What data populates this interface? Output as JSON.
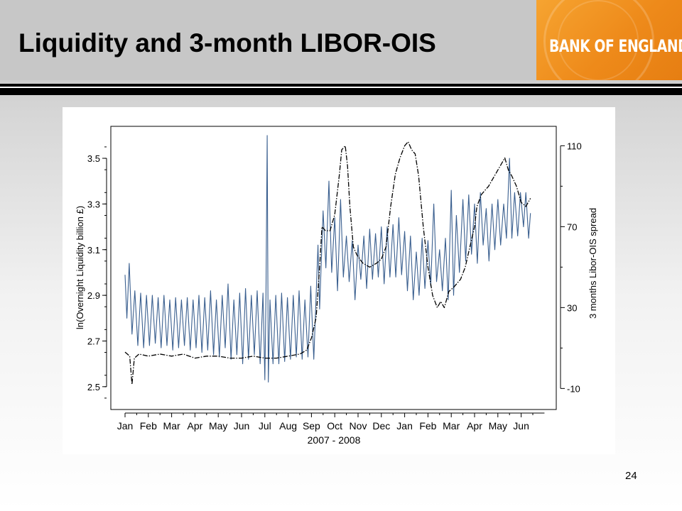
{
  "slide": {
    "title": "Liquidity and 3-month LIBOR-OIS",
    "logo_text": "BANK OF ENGLAND",
    "page_number": "24",
    "accent_color": "#ee8a1a"
  },
  "chart_data": {
    "type": "line",
    "title": "",
    "xlabel": "2007 - 2008",
    "ylabel_left": "ln(Overnight Liquidity billion £)",
    "ylabel_right": "3 months Libor-OIS spread",
    "x_tick_labels": [
      "Jan",
      "Feb",
      "Mar",
      "Apr",
      "May",
      "Jun",
      "Jul",
      "Aug",
      "Sep",
      "Oct",
      "Nov",
      "Dec",
      "Jan",
      "Feb",
      "Mar",
      "Apr",
      "May",
      "Jun"
    ],
    "y_left_ticks": [
      "2.5",
      "2.7",
      "2.9",
      "3.1",
      "3.3",
      "3.5"
    ],
    "y_left_range": [
      2.4,
      3.64
    ],
    "y_right_ticks": [
      "-10",
      "30",
      "70",
      "110"
    ],
    "y_right_range": [
      -20.4,
      119.6
    ],
    "grid": false,
    "legend": "none",
    "x_unit": "month index from Jan 2007",
    "series": [
      {
        "axis": "left",
        "style": "solid",
        "color": "#3a5f8f",
        "points": [
          [
            0.0,
            2.99
          ],
          [
            0.08,
            2.8
          ],
          [
            0.18,
            3.04
          ],
          [
            0.3,
            2.73
          ],
          [
            0.42,
            2.92
          ],
          [
            0.55,
            2.68
          ],
          [
            0.67,
            2.91
          ],
          [
            0.8,
            2.67
          ],
          [
            0.92,
            2.9
          ],
          [
            1.05,
            2.68
          ],
          [
            1.17,
            2.9
          ],
          [
            1.3,
            2.69
          ],
          [
            1.42,
            2.89
          ],
          [
            1.55,
            2.67
          ],
          [
            1.67,
            2.9
          ],
          [
            1.8,
            2.68
          ],
          [
            1.92,
            2.88
          ],
          [
            2.05,
            2.66
          ],
          [
            2.17,
            2.89
          ],
          [
            2.3,
            2.67
          ],
          [
            2.42,
            2.88
          ],
          [
            2.55,
            2.68
          ],
          [
            2.67,
            2.89
          ],
          [
            2.8,
            2.66
          ],
          [
            2.92,
            2.88
          ],
          [
            3.05,
            2.67
          ],
          [
            3.17,
            2.9
          ],
          [
            3.3,
            2.65
          ],
          [
            3.42,
            2.89
          ],
          [
            3.55,
            2.66
          ],
          [
            3.67,
            2.92
          ],
          [
            3.8,
            2.64
          ],
          [
            3.92,
            2.88
          ],
          [
            4.05,
            2.63
          ],
          [
            4.17,
            2.9
          ],
          [
            4.3,
            2.67
          ],
          [
            4.42,
            2.95
          ],
          [
            4.55,
            2.62
          ],
          [
            4.67,
            2.88
          ],
          [
            4.8,
            2.64
          ],
          [
            4.92,
            2.91
          ],
          [
            5.05,
            2.6
          ],
          [
            5.17,
            2.93
          ],
          [
            5.3,
            2.62
          ],
          [
            5.42,
            2.9
          ],
          [
            5.55,
            2.64
          ],
          [
            5.67,
            2.92
          ],
          [
            5.8,
            2.6
          ],
          [
            5.92,
            2.91
          ],
          [
            6.0,
            2.53
          ],
          [
            6.05,
            2.9
          ],
          [
            6.1,
            3.6
          ],
          [
            6.15,
            2.52
          ],
          [
            6.22,
            2.88
          ],
          [
            6.35,
            2.6
          ],
          [
            6.47,
            2.9
          ],
          [
            6.6,
            2.6
          ],
          [
            6.72,
            2.91
          ],
          [
            6.85,
            2.61
          ],
          [
            6.97,
            2.89
          ],
          [
            7.1,
            2.62
          ],
          [
            7.22,
            2.9
          ],
          [
            7.35,
            2.63
          ],
          [
            7.47,
            2.92
          ],
          [
            7.6,
            2.62
          ],
          [
            7.72,
            2.88
          ],
          [
            7.85,
            2.63
          ],
          [
            7.97,
            2.94
          ],
          [
            8.1,
            2.62
          ],
          [
            8.2,
            2.9
          ],
          [
            8.28,
            3.12
          ],
          [
            8.35,
            2.84
          ],
          [
            8.5,
            3.27
          ],
          [
            8.62,
            3.02
          ],
          [
            8.75,
            3.4
          ],
          [
            8.87,
            3.0
          ],
          [
            9.0,
            3.24
          ],
          [
            9.12,
            2.92
          ],
          [
            9.25,
            3.32
          ],
          [
            9.37,
            2.98
          ],
          [
            9.5,
            3.16
          ],
          [
            9.62,
            2.96
          ],
          [
            9.75,
            3.14
          ],
          [
            9.87,
            2.88
          ],
          [
            10.0,
            3.12
          ],
          [
            10.12,
            2.97
          ],
          [
            10.25,
            3.16
          ],
          [
            10.37,
            2.93
          ],
          [
            10.5,
            3.19
          ],
          [
            10.62,
            2.97
          ],
          [
            10.75,
            3.17
          ],
          [
            10.87,
            2.98
          ],
          [
            11.0,
            3.2
          ],
          [
            11.12,
            2.95
          ],
          [
            11.25,
            3.2
          ],
          [
            11.37,
            2.98
          ],
          [
            11.5,
            3.21
          ],
          [
            11.62,
            2.98
          ],
          [
            11.75,
            3.24
          ],
          [
            11.87,
            2.99
          ],
          [
            12.0,
            3.18
          ],
          [
            12.12,
            2.92
          ],
          [
            12.25,
            3.16
          ],
          [
            12.37,
            2.88
          ],
          [
            12.5,
            3.09
          ],
          [
            12.62,
            2.9
          ],
          [
            12.75,
            3.15
          ],
          [
            12.87,
            2.93
          ],
          [
            13.0,
            3.14
          ],
          [
            13.12,
            2.94
          ],
          [
            13.25,
            3.3
          ],
          [
            13.37,
            2.96
          ],
          [
            13.5,
            3.1
          ],
          [
            13.62,
            2.92
          ],
          [
            13.75,
            3.15
          ],
          [
            13.87,
            2.88
          ],
          [
            14.0,
            3.36
          ],
          [
            14.1,
            2.9
          ],
          [
            14.22,
            3.25
          ],
          [
            14.35,
            3.0
          ],
          [
            14.5,
            3.32
          ],
          [
            14.62,
            3.05
          ],
          [
            14.75,
            3.34
          ],
          [
            14.87,
            3.08
          ],
          [
            15.0,
            3.3
          ],
          [
            15.12,
            3.04
          ],
          [
            15.25,
            3.35
          ],
          [
            15.37,
            3.12
          ],
          [
            15.5,
            3.28
          ],
          [
            15.62,
            3.05
          ],
          [
            15.75,
            3.3
          ],
          [
            15.87,
            3.1
          ],
          [
            16.0,
            3.32
          ],
          [
            16.12,
            3.12
          ],
          [
            16.25,
            3.3
          ],
          [
            16.37,
            3.15
          ],
          [
            16.5,
            3.5
          ],
          [
            16.6,
            3.15
          ],
          [
            16.72,
            3.35
          ],
          [
            16.85,
            3.16
          ],
          [
            16.97,
            3.35
          ],
          [
            17.1,
            3.2
          ],
          [
            17.2,
            3.35
          ],
          [
            17.32,
            3.15
          ],
          [
            17.4,
            3.26
          ]
        ]
      },
      {
        "axis": "right",
        "style": "dashed",
        "color": "#000000",
        "points": [
          [
            0.0,
            8
          ],
          [
            0.2,
            6
          ],
          [
            0.3,
            -8
          ],
          [
            0.4,
            5
          ],
          [
            0.6,
            7
          ],
          [
            1.0,
            6
          ],
          [
            1.5,
            7
          ],
          [
            2.0,
            6
          ],
          [
            2.5,
            7
          ],
          [
            3.0,
            5
          ],
          [
            3.5,
            6
          ],
          [
            4.0,
            6
          ],
          [
            4.5,
            5
          ],
          [
            5.0,
            5
          ],
          [
            5.5,
            6
          ],
          [
            6.0,
            5
          ],
          [
            6.5,
            5
          ],
          [
            7.0,
            6
          ],
          [
            7.5,
            7
          ],
          [
            7.8,
            9
          ],
          [
            8.0,
            15
          ],
          [
            8.2,
            25
          ],
          [
            8.35,
            50
          ],
          [
            8.45,
            70
          ],
          [
            8.6,
            68
          ],
          [
            8.8,
            68
          ],
          [
            9.0,
            76
          ],
          [
            9.2,
            96
          ],
          [
            9.3,
            108
          ],
          [
            9.45,
            110
          ],
          [
            9.55,
            100
          ],
          [
            9.65,
            80
          ],
          [
            9.8,
            60
          ],
          [
            9.95,
            56
          ],
          [
            10.2,
            52
          ],
          [
            10.5,
            50
          ],
          [
            10.8,
            52
          ],
          [
            11.0,
            54
          ],
          [
            11.2,
            60
          ],
          [
            11.4,
            80
          ],
          [
            11.6,
            96
          ],
          [
            11.8,
            104
          ],
          [
            12.0,
            110
          ],
          [
            12.15,
            112
          ],
          [
            12.3,
            108
          ],
          [
            12.45,
            106
          ],
          [
            12.6,
            95
          ],
          [
            12.8,
            70
          ],
          [
            13.0,
            50
          ],
          [
            13.2,
            36
          ],
          [
            13.4,
            30
          ],
          [
            13.55,
            33
          ],
          [
            13.7,
            30
          ],
          [
            13.9,
            38
          ],
          [
            14.1,
            40
          ],
          [
            14.4,
            44
          ],
          [
            14.6,
            50
          ],
          [
            14.8,
            60
          ],
          [
            15.0,
            70
          ],
          [
            15.1,
            80
          ],
          [
            15.3,
            86
          ],
          [
            15.6,
            90
          ],
          [
            15.9,
            96
          ],
          [
            16.1,
            100
          ],
          [
            16.3,
            104
          ],
          [
            16.45,
            98
          ],
          [
            16.6,
            95
          ],
          [
            16.8,
            90
          ],
          [
            17.0,
            82
          ],
          [
            17.2,
            80
          ],
          [
            17.4,
            84
          ]
        ]
      }
    ]
  }
}
